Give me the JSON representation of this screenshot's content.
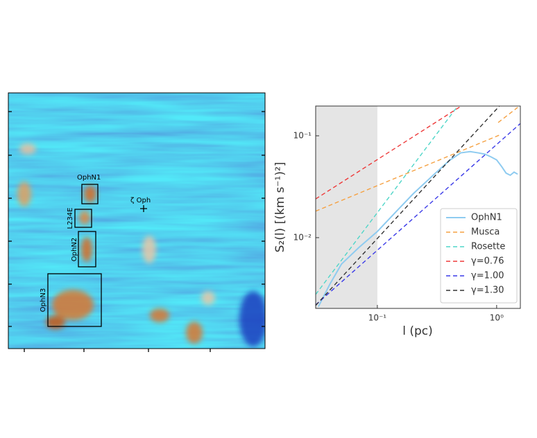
{
  "map": {
    "regions": [
      "OphN1",
      "L234E",
      "OphN2",
      "OphN3"
    ],
    "star": "ζ Oph"
  },
  "chart_data": {
    "type": "line",
    "x_label": "l (pc)",
    "y_label": "S₂(l) [(km s⁻¹)²]",
    "xlog": true,
    "ylog": true,
    "xlim": [
      0.0304,
      1.58
    ],
    "ylim": [
      0.00202,
      0.196
    ],
    "xticks": [
      {
        "value": 0.1,
        "label": "10⁻¹"
      },
      {
        "value": 1,
        "label": "10⁰"
      }
    ],
    "yticks": [
      {
        "value": 0.01,
        "label": "10⁻²"
      },
      {
        "value": 0.1,
        "label": "10⁻¹"
      }
    ],
    "shade_x": [
      0.0304,
      0.1
    ],
    "shade_color": "#e5e5e5",
    "legend": "lower right",
    "series": [
      {
        "name": "OphN1",
        "color": "#8ecbf0",
        "dash": false,
        "x": [
          0.032,
          0.04,
          0.05,
          0.07,
          0.1,
          0.15,
          0.2,
          0.3,
          0.4,
          0.5,
          0.6,
          0.7,
          0.8,
          0.9,
          1.0,
          1.1,
          1.2,
          1.3,
          1.4,
          1.5
        ],
        "y": [
          0.0021,
          0.0035,
          0.0055,
          0.008,
          0.0115,
          0.019,
          0.027,
          0.042,
          0.057,
          0.068,
          0.07,
          0.068,
          0.066,
          0.062,
          0.058,
          0.05,
          0.043,
          0.041,
          0.044,
          0.042
        ]
      },
      {
        "name": "Musca",
        "color": "#f5a142",
        "dash": true,
        "x": [
          0.0304,
          1.055,
          null,
          1.03,
          1.5
        ],
        "y": [
          0.0182,
          0.1016,
          null,
          0.135,
          0.19
        ]
      },
      {
        "name": "Rosette",
        "color": "#4fd6c8",
        "dash": true,
        "x": [
          0.0304,
          0.472
        ],
        "y": [
          0.00277,
          0.196
        ]
      },
      {
        "name": "γ=0.76",
        "color": "#ee3a3a",
        "dash": true,
        "x": [
          0.0304,
          0.505
        ],
        "y": [
          0.024,
          0.196
        ]
      },
      {
        "name": "γ=1.00",
        "color": "#3a3ae8",
        "dash": true,
        "x": [
          0.0304,
          1.58
        ],
        "y": [
          0.00219,
          0.132
        ]
      },
      {
        "name": "γ=1.30",
        "color": "#333333",
        "dash": true,
        "x": [
          0.0304,
          1.055
        ],
        "y": [
          0.00216,
          0.196
        ]
      }
    ]
  }
}
